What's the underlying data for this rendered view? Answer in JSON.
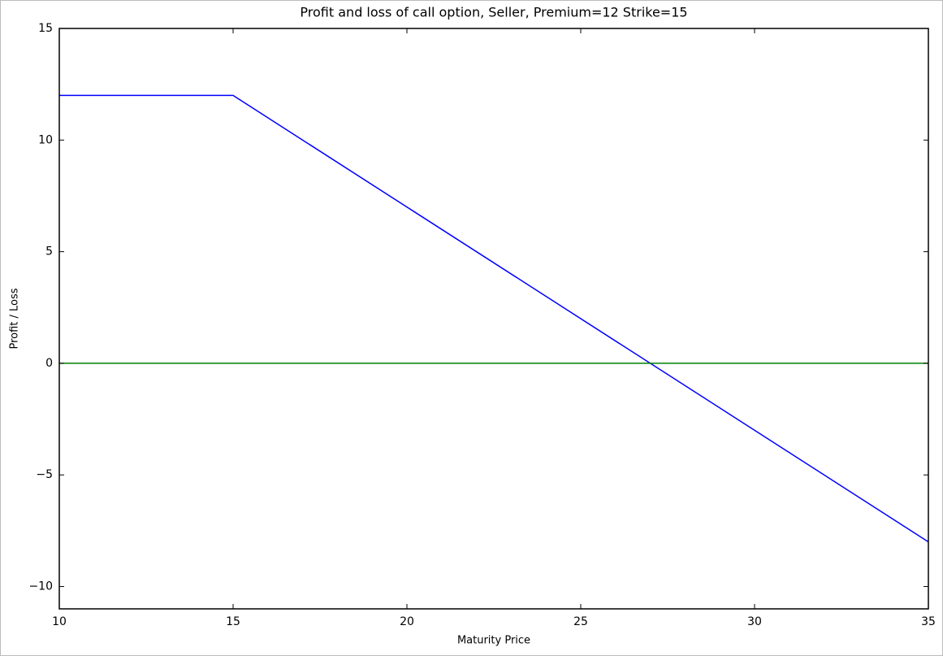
{
  "chart_data": {
    "type": "line",
    "title": "Profit and loss of call option, Seller, Premium=12 Strike=15",
    "x_label": "Maturity Price",
    "y_label": "Profit / Loss",
    "series": [
      {
        "color": "#0000ff",
        "x": [
          10,
          15,
          35
        ],
        "values": [
          12,
          12,
          -8
        ]
      },
      {
        "color": "#008000",
        "x": [
          10,
          35
        ],
        "values": [
          0,
          0
        ]
      }
    ],
    "xlim": [
      10,
      35
    ],
    "ylim": [
      -11,
      15
    ],
    "xticks": [
      10,
      15,
      20,
      25,
      30,
      35
    ],
    "yticks": [
      15,
      10,
      5,
      0,
      {
        "value": -5,
        "label": "−5"
      },
      {
        "value": -10,
        "label": "−10"
      }
    ],
    "grid": false
  }
}
